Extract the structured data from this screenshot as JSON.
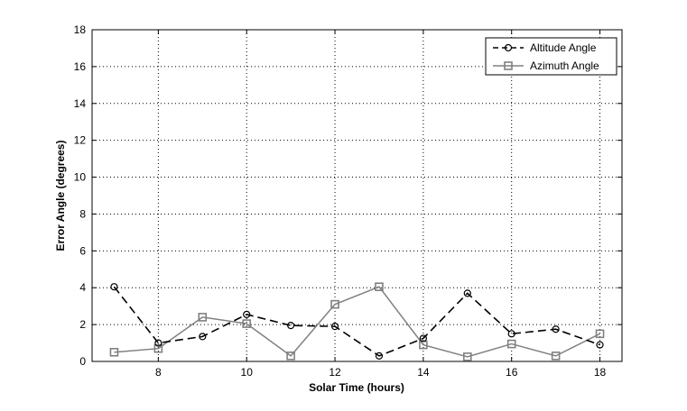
{
  "chart_data": {
    "type": "line",
    "title": "",
    "xlabel": "Solar Time (hours)",
    "ylabel": "Error Angle (degrees)",
    "xlim": [
      6.5,
      18.5
    ],
    "ylim": [
      0,
      18
    ],
    "xticks": [
      8,
      10,
      12,
      14,
      16,
      18
    ],
    "yticks": [
      0,
      2,
      4,
      6,
      8,
      10,
      12,
      14,
      16,
      18
    ],
    "grid": true,
    "legend_position": "top-right",
    "x": [
      7,
      8,
      9,
      10,
      11,
      12,
      13,
      14,
      15,
      16,
      17,
      18
    ],
    "series": [
      {
        "name": "Altitude Angle",
        "color": "#000000",
        "line_style": "dashed",
        "marker": "circle",
        "values": [
          4.05,
          1.0,
          1.35,
          2.55,
          1.95,
          1.9,
          0.3,
          1.25,
          3.7,
          1.5,
          1.75,
          0.9
        ]
      },
      {
        "name": "Azimuth Angle",
        "color": "#808080",
        "line_style": "solid",
        "marker": "square",
        "values": [
          0.5,
          0.7,
          2.4,
          2.05,
          0.3,
          3.1,
          4.05,
          0.9,
          0.25,
          0.95,
          0.3,
          1.5
        ]
      }
    ]
  }
}
